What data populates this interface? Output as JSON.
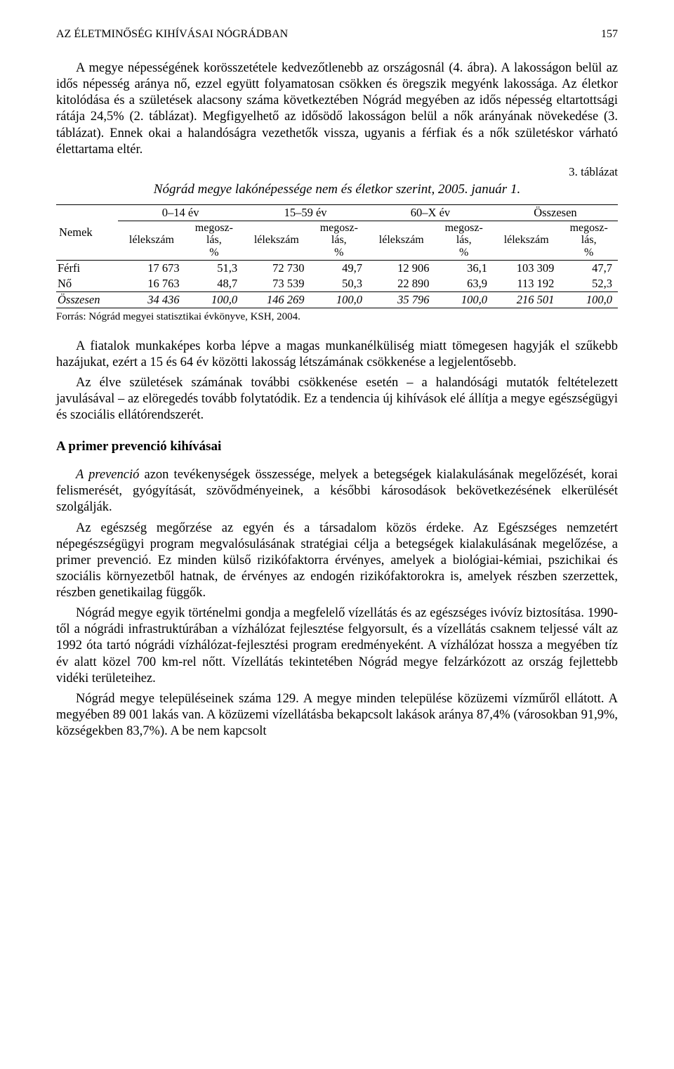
{
  "header": {
    "running_title": "AZ ÉLETMINŐSÉG KIHÍVÁSAI NÓGRÁDBAN",
    "page_number": "157"
  },
  "para1": "A megye népességének korösszetétele kedvezőtlenebb az országosnál (4. ábra). A lakosságon belül az idős népesség aránya nő, ezzel együtt folyamatosan csökken és öregszik megyénk lakossága. Az életkor kitolódása és a születések alacsony száma következtében Nógrád megyében az idős népesség eltartottsági rátája 24,5% (2. táblázat). Megfigyelhető az idősödő lakosságon belül a nők arányának növekedése (3. táblázat). Ennek okai a halandóságra vezethetők vissza, ugyanis a férfiak és a nők születéskor várható élettartama eltér.",
  "table": {
    "label": "3. táblázat",
    "title": "Nógrád megye lakónépessége nem és életkor szerint, 2005. január 1.",
    "col_nemek": "Nemek",
    "groups": [
      "0–14 év",
      "15–59 év",
      "60–X év",
      "Összesen"
    ],
    "sub_lelekszam": "lélekszám",
    "sub_megoszlas": "megosz-\nlás,\n%",
    "rows": [
      {
        "label": "Férfi",
        "cells": [
          "17 673",
          "51,3",
          "72 730",
          "49,7",
          "12 906",
          "36,1",
          "103 309",
          "47,7"
        ]
      },
      {
        "label": "Nő",
        "cells": [
          "16 763",
          "48,7",
          "73 539",
          "50,3",
          "22 890",
          "63,9",
          "113 192",
          "52,3"
        ]
      }
    ],
    "totals": {
      "label": "Összesen",
      "cells": [
        "34 436",
        "100,0",
        "146 269",
        "100,0",
        "35 796",
        "100,0",
        "216 501",
        "100,0"
      ]
    },
    "source": "Forrás: Nógrád megyei statisztikai évkönyve, KSH, 2004."
  },
  "para2": "A fiatalok munkaképes korba lépve a magas munkanélküliség miatt tömegesen hagyják el szűkebb hazájukat, ezért a 15 és 64 év közötti lakosság létszámának csökkenése a legjelentősebb.",
  "para3": "Az élve születések számának további csökkenése esetén – a halandósági mutatók feltételezett javulásával – az elöregedés tovább folytatódik. Ez a tendencia új kihívások elé állítja a megye egészségügyi és szociális ellátórendszerét.",
  "section_heading": "A primer prevenció kihívásai",
  "para4_lead": "A prevenció",
  "para4_rest": " azon tevékenységek összessége, melyek a betegségek kialakulásának megelőzését, korai felismerését, gyógyítását, szövődményeinek, a későbbi károsodások bekövetkezésének elkerülését szolgálják.",
  "para5": "Az egészség megőrzése az egyén és a társadalom közös érdeke. Az Egészséges nemzetért népegészségügyi program megvalósulásának stratégiai célja a betegségek kialakulásának megelőzése, a primer prevenció. Ez minden külső rizikófaktorra érvényes, amelyek a biológiai-kémiai, pszichikai és szociális környezetből hatnak, de érvényes az endogén rizikófaktorokra is, amelyek részben szerzettek, részben genetikailag függők.",
  "para6": "Nógrád megye egyik történelmi gondja a megfelelő vízellátás és az egészséges ivóvíz biztosítása. 1990-től a nógrádi infrastruktúrában a vízhálózat fejlesztése felgyorsult, és a vízellátás csaknem teljessé vált az 1992 óta tartó nógrádi vízhálózat-fejlesztési program eredményeként. A vízhálózat hossza a megyében tíz év alatt közel 700 km-rel nőtt. Vízellátás tekintetében Nógrád megye felzárkózott az ország fejlettebb vidéki területeihez.",
  "para7": "Nógrád megye településeinek száma 129. A megye minden települése közüzemi vízműről ellátott. A megyében 89 001 lakás van. A közüzemi vízellátásba bekapcsolt lakások aránya 87,4% (városokban 91,9%, községekben 83,7%). A be nem kapcsolt"
}
